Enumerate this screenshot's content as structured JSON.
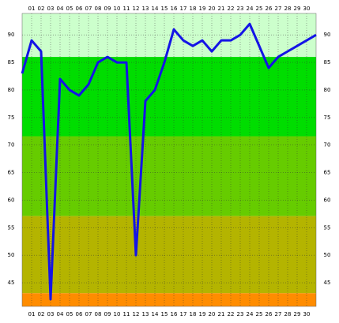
{
  "chart_data": {
    "type": "line",
    "x": [
      0,
      1,
      2,
      3,
      4,
      5,
      6,
      7,
      8,
      9,
      10,
      11,
      12,
      13,
      14,
      15,
      16,
      17,
      18,
      19,
      20,
      21,
      22,
      23,
      24,
      25,
      26,
      27,
      28,
      29,
      30,
      31
    ],
    "series": [
      {
        "color": "#1414e6",
        "values": [
          83,
          89,
          87,
          42,
          82,
          80,
          79,
          81,
          85,
          86,
          85,
          85,
          50,
          78,
          80,
          85,
          91,
          89,
          88,
          89,
          87,
          89,
          89,
          90,
          92,
          88,
          84,
          86,
          87,
          88,
          89,
          90
        ]
      }
    ],
    "xlim": [
      0,
      31
    ],
    "xticks": [
      {
        "value": 1,
        "label": "01"
      },
      {
        "value": 2,
        "label": "02"
      },
      {
        "value": 3,
        "label": "03"
      },
      {
        "value": 4,
        "label": "04"
      },
      {
        "value": 5,
        "label": "05"
      },
      {
        "value": 6,
        "label": "06"
      },
      {
        "value": 7,
        "label": "07"
      },
      {
        "value": 8,
        "label": "08"
      },
      {
        "value": 9,
        "label": "09"
      },
      {
        "value": 10,
        "label": "10"
      },
      {
        "value": 11,
        "label": "11"
      },
      {
        "value": 12,
        "label": "12"
      },
      {
        "value": 13,
        "label": "13"
      },
      {
        "value": 14,
        "label": "14"
      },
      {
        "value": 15,
        "label": "15"
      },
      {
        "value": 16,
        "label": "16"
      },
      {
        "value": 17,
        "label": "17"
      },
      {
        "value": 18,
        "label": "18"
      },
      {
        "value": 19,
        "label": "19"
      },
      {
        "value": 20,
        "label": "20"
      },
      {
        "value": 21,
        "label": "21"
      },
      {
        "value": 22,
        "label": "22"
      },
      {
        "value": 23,
        "label": "23"
      },
      {
        "value": 24,
        "label": "24"
      },
      {
        "value": 25,
        "label": "25"
      },
      {
        "value": 26,
        "label": "26"
      },
      {
        "value": 27,
        "label": "27"
      },
      {
        "value": 28,
        "label": "28"
      },
      {
        "value": 29,
        "label": "29"
      },
      {
        "value": 30,
        "label": "30"
      }
    ],
    "ylim": [
      40.7,
      93.9
    ],
    "yticks": [
      45,
      50,
      55,
      60,
      65,
      70,
      75,
      80,
      85,
      90
    ],
    "grid": true,
    "bands": [
      {
        "min": 86,
        "max": 93.9,
        "color": "#ccffcc"
      },
      {
        "min": 71.6,
        "max": 86,
        "color": "#00dd00"
      },
      {
        "min": 57.1,
        "max": 71.6,
        "color": "#66cc00"
      },
      {
        "min": 43.1,
        "max": 57.1,
        "color": "#b4b400"
      },
      {
        "min": 40.7,
        "max": 43.1,
        "color": "#ff8c00"
      }
    ]
  }
}
